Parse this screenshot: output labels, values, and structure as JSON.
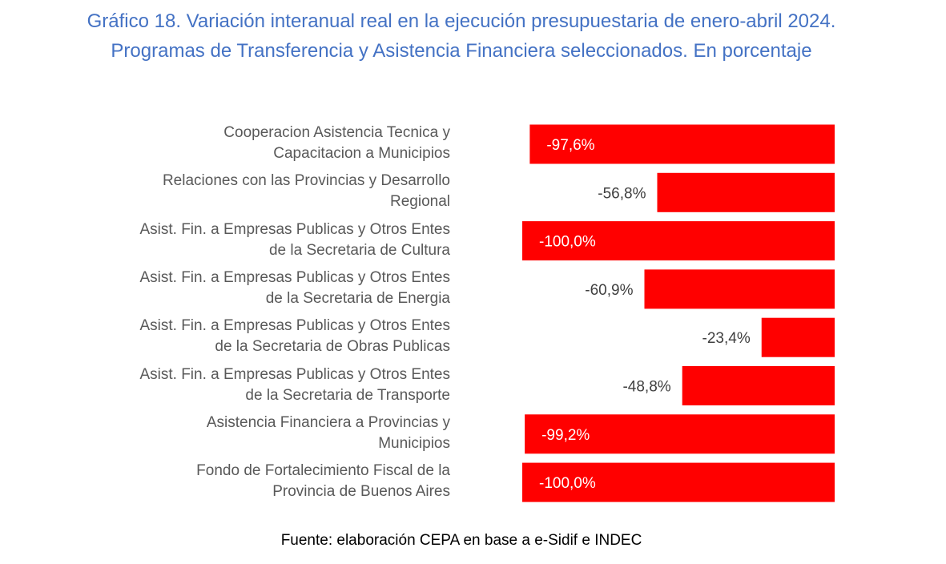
{
  "title": "Gráfico 18. Variación interanual real en la ejecución presupuestaria de enero-abril 2024. Programas de Transferencia y Asistencia Financiera seleccionados. En porcentaje",
  "source": "Fuente: elaboración CEPA en base a e-Sidif e INDEC",
  "chart_data": {
    "type": "bar",
    "orientation": "horizontal",
    "categories": [
      "Cooperacion Asistencia Tecnica y Capacitacion a Municipios",
      "Relaciones con las Provincias y Desarrollo Regional",
      "Asist. Fin. a Empresas Publicas y Otros Entes de la Secretaria de Cultura",
      "Asist. Fin.  a Empresas Publicas y Otros Entes de la Secretaria de Energia",
      "Asist. Fin.  a Empresas Publicas y Otros Entes de la Secretaria de Obras Publicas",
      "Asist. Fin.  a Empresas Publicas y Otros Entes de la Secretaria de Transporte",
      "Asistencia Financiera a Provincias y Municipios",
      "Fondo de Fortalecimiento Fiscal de la Provincia de Buenos Aires"
    ],
    "category_lines": [
      [
        "Cooperacion Asistencia Tecnica y",
        "Capacitacion a Municipios"
      ],
      [
        "Relaciones con las Provincias y Desarrollo",
        "Regional"
      ],
      [
        "Asist. Fin. a Empresas Publicas y Otros Entes",
        "de la Secretaria de Cultura"
      ],
      [
        "Asist. Fin.  a Empresas Publicas y Otros Entes",
        "de la Secretaria de Energia"
      ],
      [
        "Asist. Fin.  a Empresas Publicas y Otros Entes",
        "de la Secretaria de Obras Publicas"
      ],
      [
        "Asist. Fin.  a Empresas Publicas y Otros Entes",
        "de la Secretaria de Transporte"
      ],
      [
        "Asistencia Financiera a Provincias y",
        "Municipios"
      ],
      [
        "Fondo de Fortalecimiento Fiscal de la",
        "Provincia de Buenos Aires"
      ]
    ],
    "values": [
      -97.6,
      -56.8,
      -100.0,
      -60.9,
      -23.4,
      -48.8,
      -99.2,
      -100.0
    ],
    "labels": [
      "-97,6%",
      "-56,8%",
      "-100,0%",
      "-60,9%",
      "-23,4%",
      "-48,8%",
      "-99,2%",
      "-100,0%"
    ],
    "xlim": [
      -100,
      0
    ],
    "bar_color": "#ff0000",
    "grid": false,
    "legend": "none"
  }
}
